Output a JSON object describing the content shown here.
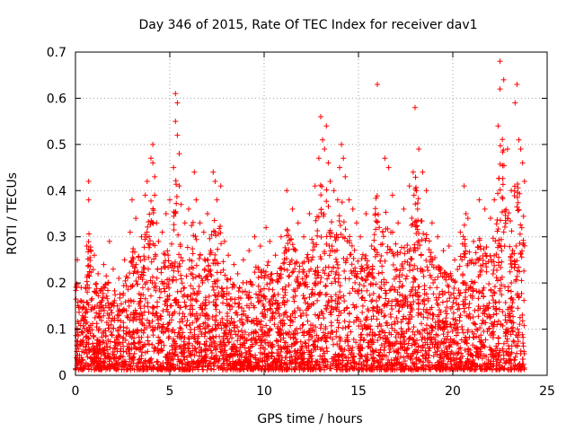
{
  "chart_data": {
    "type": "scatter",
    "title": "Day 346 of 2015, Rate Of TEC Index for receiver dav1",
    "xlabel": "GPS time / hours",
    "ylabel": "ROTI / TECUs",
    "xlim": [
      0,
      25
    ],
    "ylim": [
      0,
      0.7
    ],
    "xticks": [
      0,
      5,
      10,
      15,
      20,
      25
    ],
    "yticks": [
      0,
      0.1,
      0.2,
      0.3,
      0.4,
      0.5,
      0.6,
      0.7
    ],
    "grid": true,
    "marker": "plus",
    "color": "#ff0000",
    "series": [
      {
        "x": [
          0.1,
          0.3,
          0.6,
          0.7,
          0.7,
          1.0,
          1.2,
          1.5,
          1.8,
          2.0,
          2.3,
          2.6,
          2.9,
          3.0,
          3.2,
          3.5,
          3.7,
          3.8,
          4.0,
          4.1,
          4.1,
          4.2,
          4.2,
          4.3,
          4.4,
          4.6,
          4.8,
          5.0,
          5.2,
          5.3,
          5.3,
          5.4,
          5.4,
          5.5,
          5.5,
          5.6,
          5.8,
          6.0,
          6.3,
          6.4,
          6.6,
          6.8,
          7.0,
          7.3,
          7.4,
          7.5,
          7.7,
          7.9,
          8.1,
          8.4,
          8.6,
          8.9,
          9.2,
          9.5,
          9.8,
          10.1,
          10.3,
          10.6,
          10.9,
          11.2,
          11.5,
          11.8,
          12.1,
          12.4,
          12.7,
          12.9,
          13.0,
          13.1,
          13.2,
          13.3,
          13.4,
          13.5,
          13.7,
          13.9,
          14.0,
          14.1,
          14.2,
          14.3,
          14.5,
          14.7,
          14.9,
          15.1,
          15.4,
          15.7,
          16.0,
          16.1,
          16.4,
          16.6,
          16.8,
          17.1,
          17.4,
          17.7,
          17.9,
          18.0,
          18.2,
          18.4,
          18.6,
          18.9,
          19.2,
          19.5,
          19.8,
          20.1,
          20.4,
          20.6,
          20.7,
          20.8,
          21.1,
          21.4,
          21.7,
          22.0,
          22.2,
          22.4,
          22.5,
          22.5,
          22.7,
          22.9,
          23.1,
          23.3,
          23.4,
          23.5,
          23.6,
          23.7,
          23.8
        ],
        "y": [
          0.25,
          0.19,
          0.28,
          0.38,
          0.42,
          0.26,
          0.22,
          0.24,
          0.29,
          0.23,
          0.21,
          0.25,
          0.31,
          0.38,
          0.34,
          0.3,
          0.39,
          0.42,
          0.47,
          0.5,
          0.46,
          0.43,
          0.39,
          0.33,
          0.29,
          0.31,
          0.35,
          0.38,
          0.45,
          0.55,
          0.61,
          0.59,
          0.52,
          0.48,
          0.41,
          0.37,
          0.33,
          0.36,
          0.44,
          0.38,
          0.33,
          0.31,
          0.35,
          0.44,
          0.42,
          0.38,
          0.41,
          0.29,
          0.26,
          0.24,
          0.22,
          0.25,
          0.27,
          0.3,
          0.28,
          0.32,
          0.29,
          0.26,
          0.3,
          0.4,
          0.36,
          0.33,
          0.3,
          0.35,
          0.41,
          0.47,
          0.56,
          0.51,
          0.49,
          0.54,
          0.46,
          0.42,
          0.4,
          0.38,
          0.45,
          0.5,
          0.47,
          0.43,
          0.38,
          0.36,
          0.33,
          0.3,
          0.35,
          0.28,
          0.63,
          0.32,
          0.47,
          0.45,
          0.39,
          0.33,
          0.36,
          0.41,
          0.44,
          0.58,
          0.49,
          0.44,
          0.4,
          0.33,
          0.3,
          0.27,
          0.28,
          0.25,
          0.31,
          0.41,
          0.35,
          0.34,
          0.29,
          0.38,
          0.36,
          0.34,
          0.38,
          0.54,
          0.62,
          0.68,
          0.64,
          0.49,
          0.4,
          0.59,
          0.63,
          0.51,
          0.49,
          0.46,
          0.42
        ]
      }
    ]
  }
}
